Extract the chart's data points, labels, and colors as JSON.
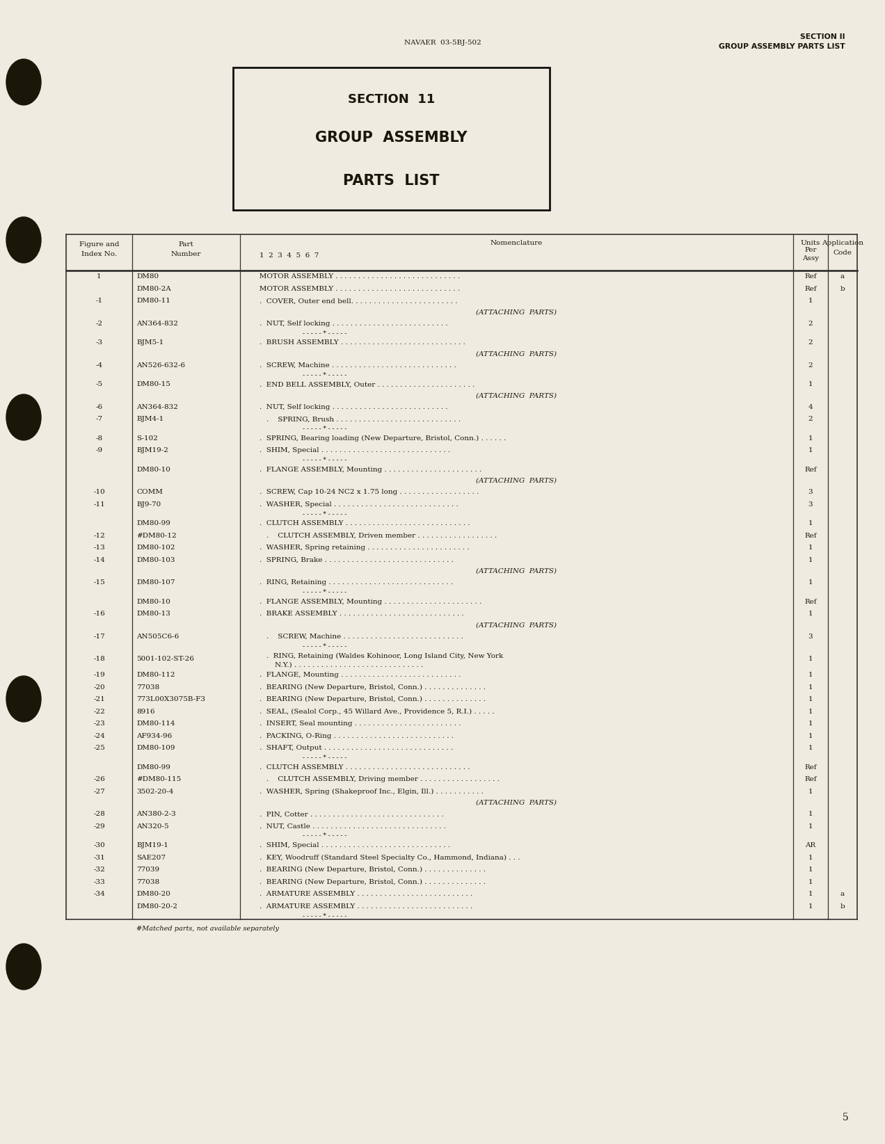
{
  "page_header_center": "NAVAER  03-5BJ-502",
  "page_header_right_line1": "SECTION II",
  "page_header_right_line2": "GROUP ASSEMBLY PARTS LIST",
  "section_box_text": [
    "SECTION  11",
    "GROUP  ASSEMBLY",
    "PARTS  LIST"
  ],
  "bg_color": "#f0ebe0",
  "text_color": "#1a1708",
  "page_number": "5",
  "footnote": "#Matched parts, not available separately",
  "rows": [
    {
      "fig": "1",
      "part": "DM80",
      "desc": "MOTOR ASSEMBLY . . . . . . . . . . . . . . . . . . . . . . . . . . . .",
      "qty": "Ref",
      "code": "a",
      "type": "data",
      "dot": false
    },
    {
      "fig": "",
      "part": "DM80-2A",
      "desc": "MOTOR ASSEMBLY . . . . . . . . . . . . . . . . . . . . . . . . . . . .",
      "qty": "Ref",
      "code": "b",
      "type": "data",
      "dot": false
    },
    {
      "fig": "-1",
      "part": "DM80-11",
      "desc": "COVER, Outer end bell. . . . . . . . . . . . . . . . . . . . . . . .",
      "qty": "1",
      "code": "",
      "type": "data",
      "dot": true,
      "indent": 1
    },
    {
      "fig": "",
      "part": "",
      "desc": "(ATTACHING  PARTS)",
      "qty": "",
      "code": "",
      "type": "attaching",
      "dot": false
    },
    {
      "fig": "-2",
      "part": "AN364-832",
      "desc": "NUT, Self locking . . . . . . . . . . . . . . . . . . . . . . . . . .",
      "qty": "2",
      "code": "",
      "type": "data",
      "dot": true,
      "indent": 1
    },
    {
      "fig": "",
      "part": "",
      "desc": "-----*-----",
      "qty": "",
      "code": "",
      "type": "sep",
      "dot": false
    },
    {
      "fig": "-3",
      "part": "BJM5-1",
      "desc": "BRUSH ASSEMBLY . . . . . . . . . . . . . . . . . . . . . . . . . . . .",
      "qty": "2",
      "code": "",
      "type": "data",
      "dot": true,
      "indent": 1
    },
    {
      "fig": "",
      "part": "",
      "desc": "(ATTACHING  PARTS)",
      "qty": "",
      "code": "",
      "type": "attaching",
      "dot": false
    },
    {
      "fig": "-4",
      "part": "AN526-632-6",
      "desc": "SCREW, Machine . . . . . . . . . . . . . . . . . . . . . . . . . . . .",
      "qty": "2",
      "code": "",
      "type": "data",
      "dot": true,
      "indent": 1
    },
    {
      "fig": "",
      "part": "",
      "desc": "-----*-----",
      "qty": "",
      "code": "",
      "type": "sep",
      "dot": false
    },
    {
      "fig": "-5",
      "part": "DM80-15",
      "desc": "END BELL ASSEMBLY, Outer . . . . . . . . . . . . . . . . . . . . . .",
      "qty": "1",
      "code": "",
      "type": "data",
      "dot": true,
      "indent": 1
    },
    {
      "fig": "",
      "part": "",
      "desc": "(ATTACHING  PARTS)",
      "qty": "",
      "code": "",
      "type": "attaching",
      "dot": false
    },
    {
      "fig": "-6",
      "part": "AN364-832",
      "desc": "NUT, Self locking . . . . . . . . . . . . . . . . . . . . . . . . . .",
      "qty": "4",
      "code": "",
      "type": "data",
      "dot": true,
      "indent": 1
    },
    {
      "fig": "-7",
      "part": "BJM4-1",
      "desc": "  SPRING, Brush . . . . . . . . . . . . . . . . . . . . . . . . . . . .",
      "qty": "2",
      "code": "",
      "type": "data",
      "dot": true,
      "indent": 2
    },
    {
      "fig": "",
      "part": "",
      "desc": "-----*-----",
      "qty": "",
      "code": "",
      "type": "sep",
      "dot": false
    },
    {
      "fig": "-8",
      "part": "S-102",
      "desc": "SPRING, Bearing loading (New Departure, Bristol, Conn.) . . . . . .",
      "qty": "1",
      "code": "",
      "type": "data",
      "dot": true,
      "indent": 1
    },
    {
      "fig": "-9",
      "part": "BJM19-2",
      "desc": "SHIM, Special . . . . . . . . . . . . . . . . . . . . . . . . . . . . .",
      "qty": "1",
      "code": "",
      "type": "data",
      "dot": true,
      "indent": 1
    },
    {
      "fig": "",
      "part": "",
      "desc": "-----*-----",
      "qty": "",
      "code": "",
      "type": "sep",
      "dot": false
    },
    {
      "fig": "",
      "part": "DM80-10",
      "desc": "FLANGE ASSEMBLY, Mounting . . . . . . . . . . . . . . . . . . . . . .",
      "qty": "Ref",
      "code": "",
      "type": "data",
      "dot": true,
      "indent": 1
    },
    {
      "fig": "",
      "part": "",
      "desc": "(ATTACHING  PARTS)",
      "qty": "",
      "code": "",
      "type": "attaching",
      "dot": false
    },
    {
      "fig": "-10",
      "part": "COMM",
      "desc": "SCREW, Cap 10-24 NC2 x 1.75 long . . . . . . . . . . . . . . . . . .",
      "qty": "3",
      "code": "",
      "type": "data",
      "dot": true,
      "indent": 1
    },
    {
      "fig": "-11",
      "part": "BJ9-70",
      "desc": "WASHER, Special . . . . . . . . . . . . . . . . . . . . . . . . . . . .",
      "qty": "3",
      "code": "",
      "type": "data",
      "dot": true,
      "indent": 1
    },
    {
      "fig": "",
      "part": "",
      "desc": "-----*-----",
      "qty": "",
      "code": "",
      "type": "sep",
      "dot": false
    },
    {
      "fig": "",
      "part": "DM80-99",
      "desc": "CLUTCH ASSEMBLY . . . . . . . . . . . . . . . . . . . . . . . . . . . .",
      "qty": "1",
      "code": "",
      "type": "data",
      "dot": true,
      "indent": 1
    },
    {
      "fig": "-12",
      "part": "#DM80-12",
      "desc": "  CLUTCH ASSEMBLY, Driven member . . . . . . . . . . . . . . . . . .",
      "qty": "Ref",
      "code": "",
      "type": "data",
      "dot": true,
      "indent": 2
    },
    {
      "fig": "-13",
      "part": "DM80-102",
      "desc": "WASHER, Spring retaining . . . . . . . . . . . . . . . . . . . . . . .",
      "qty": "1",
      "code": "",
      "type": "data",
      "dot": true,
      "indent": 1
    },
    {
      "fig": "-14",
      "part": "DM80-103",
      "desc": "SPRING, Brake . . . . . . . . . . . . . . . . . . . . . . . . . . . . .",
      "qty": "1",
      "code": "",
      "type": "data",
      "dot": true,
      "indent": 1
    },
    {
      "fig": "",
      "part": "",
      "desc": "(ATTACHING  PARTS)",
      "qty": "",
      "code": "",
      "type": "attaching",
      "dot": false
    },
    {
      "fig": "-15",
      "part": "DM80-107",
      "desc": "RING, Retaining . . . . . . . . . . . . . . . . . . . . . . . . . . . .",
      "qty": "1",
      "code": "",
      "type": "data",
      "dot": true,
      "indent": 1
    },
    {
      "fig": "",
      "part": "",
      "desc": "-----*-----",
      "qty": "",
      "code": "",
      "type": "sep",
      "dot": false
    },
    {
      "fig": "",
      "part": "DM80-10",
      "desc": "FLANGE ASSEMBLY, Mounting . . . . . . . . . . . . . . . . . . . . . .",
      "qty": "Ref",
      "code": "",
      "type": "data",
      "dot": true,
      "indent": 1
    },
    {
      "fig": "-16",
      "part": "DM80-13",
      "desc": "BRAKE ASSEMBLY . . . . . . . . . . . . . . . . . . . . . . . . . . . .",
      "qty": "1",
      "code": "",
      "type": "data",
      "dot": true,
      "indent": 1
    },
    {
      "fig": "",
      "part": "",
      "desc": "(ATTACHING  PARTS)",
      "qty": "",
      "code": "",
      "type": "attaching",
      "dot": false
    },
    {
      "fig": "-17",
      "part": "AN505C6-6",
      "desc": "  SCREW, Machine . . . . . . . . . . . . . . . . . . . . . . . . . . .",
      "qty": "3",
      "code": "",
      "type": "data",
      "dot": true,
      "indent": 2
    },
    {
      "fig": "",
      "part": "",
      "desc": "-----*-----",
      "qty": "",
      "code": "",
      "type": "sep",
      "dot": false
    },
    {
      "fig": "-18",
      "part": "5001-102-ST-26",
      "desc": "  RING, Retaining (Waldes Kohinoor, Long Island City, New York\n        N.Y.) . . . . . . . . . . . . . . . . . . . . . . . . . . . . .",
      "qty": "1",
      "code": "",
      "type": "multi",
      "dot": true,
      "indent": 2
    },
    {
      "fig": "-19",
      "part": "DM80-112",
      "desc": "FLANGE, Mounting . . . . . . . . . . . . . . . . . . . . . . . . . . .",
      "qty": "1",
      "code": "",
      "type": "data",
      "dot": true,
      "indent": 1
    },
    {
      "fig": "-20",
      "part": "77038",
      "desc": "BEARING (New Departure, Bristol, Conn.) . . . . . . . . . . . . . .",
      "qty": "1",
      "code": "",
      "type": "data",
      "dot": true,
      "indent": 1
    },
    {
      "fig": "-21",
      "part": "773L00X3075B-F3",
      "desc": "BEARING (New Departure, Bristol, Conn.) . . . . . . . . . . . . . .",
      "qty": "1",
      "code": "",
      "type": "data",
      "dot": true,
      "indent": 1
    },
    {
      "fig": "-22",
      "part": "8916",
      "desc": "SEAL, (Sealol Corp., 45 Willard Ave., Providence 5, R.I.) . . . . .",
      "qty": "1",
      "code": "",
      "type": "data",
      "dot": true,
      "indent": 1
    },
    {
      "fig": "-23",
      "part": "DM80-114",
      "desc": "INSERT, Seal mounting . . . . . . . . . . . . . . . . . . . . . . . .",
      "qty": "1",
      "code": "",
      "type": "data",
      "dot": true,
      "indent": 1
    },
    {
      "fig": "-24",
      "part": "AF934-96",
      "desc": "PACKING, O-Ring . . . . . . . . . . . . . . . . . . . . . . . . . . .",
      "qty": "1",
      "code": "",
      "type": "data",
      "dot": true,
      "indent": 1
    },
    {
      "fig": "-25",
      "part": "DM80-109",
      "desc": "SHAFT, Output . . . . . . . . . . . . . . . . . . . . . . . . . . . . .",
      "qty": "1",
      "code": "",
      "type": "data",
      "dot": true,
      "indent": 1
    },
    {
      "fig": "",
      "part": "",
      "desc": "-----*-----",
      "qty": "",
      "code": "",
      "type": "sep",
      "dot": false
    },
    {
      "fig": "",
      "part": "DM80-99",
      "desc": "CLUTCH ASSEMBLY . . . . . . . . . . . . . . . . . . . . . . . . . . . .",
      "qty": "Ref",
      "code": "",
      "type": "data",
      "dot": true,
      "indent": 1
    },
    {
      "fig": "-26",
      "part": "#DM80-115",
      "desc": "  CLUTCH ASSEMBLY, Driving member . . . . . . . . . . . . . . . . . .",
      "qty": "Ref",
      "code": "",
      "type": "data",
      "dot": true,
      "indent": 2
    },
    {
      "fig": "-27",
      "part": "3502-20-4",
      "desc": "WASHER, Spring (Shakeproof Inc., Elgin, Ill.) . . . . . . . . . . .",
      "qty": "1",
      "code": "",
      "type": "data",
      "dot": true,
      "indent": 1
    },
    {
      "fig": "",
      "part": "",
      "desc": "(ATTACHING  PARTS)",
      "qty": "",
      "code": "",
      "type": "attaching",
      "dot": false
    },
    {
      "fig": "-28",
      "part": "AN380-2-3",
      "desc": "PIN, Cotter . . . . . . . . . . . . . . . . . . . . . . . . . . . . . .",
      "qty": "1",
      "code": "",
      "type": "data",
      "dot": true,
      "indent": 1
    },
    {
      "fig": "-29",
      "part": "AN320-5",
      "desc": "NUT, Castle . . . . . . . . . . . . . . . . . . . . . . . . . . . . . .",
      "qty": "1",
      "code": "",
      "type": "data",
      "dot": true,
      "indent": 1
    },
    {
      "fig": "",
      "part": "",
      "desc": "-----*-----",
      "qty": "",
      "code": "",
      "type": "sep",
      "dot": false
    },
    {
      "fig": "-30",
      "part": "BJM19-1",
      "desc": "SHIM, Special . . . . . . . . . . . . . . . . . . . . . . . . . . . . .",
      "qty": "AR",
      "code": "",
      "type": "data",
      "dot": true,
      "indent": 1
    },
    {
      "fig": "-31",
      "part": "SAE207",
      "desc": "KEY, Woodruff (Standard Steel Specialty Co., Hammond, Indiana) . . .",
      "qty": "1",
      "code": "",
      "type": "data",
      "dot": true,
      "indent": 1
    },
    {
      "fig": "-32",
      "part": "77039",
      "desc": "BEARING (New Departure, Bristol, Conn.) . . . . . . . . . . . . . .",
      "qty": "1",
      "code": "",
      "type": "data",
      "dot": true,
      "indent": 1
    },
    {
      "fig": "-33",
      "part": "77038",
      "desc": "BEARING (New Departure, Bristol, Conn.) . . . . . . . . . . . . . .",
      "qty": "1",
      "code": "",
      "type": "data",
      "dot": true,
      "indent": 1
    },
    {
      "fig": "-34",
      "part": "DM80-20",
      "desc": "ARMATURE ASSEMBLY . . . . . . . . . . . . . . . . . . . . . . . . . .",
      "qty": "1",
      "code": "a",
      "type": "data",
      "dot": true,
      "indent": 1
    },
    {
      "fig": "",
      "part": "DM80-20-2",
      "desc": "ARMATURE ASSEMBLY . . . . . . . . . . . . . . . . . . . . . . . . . .",
      "qty": "1",
      "code": "b",
      "type": "data",
      "dot": true,
      "indent": 1
    },
    {
      "fig": "",
      "part": "",
      "desc": "-----*-----",
      "qty": "",
      "code": "",
      "type": "sep",
      "dot": false
    }
  ]
}
